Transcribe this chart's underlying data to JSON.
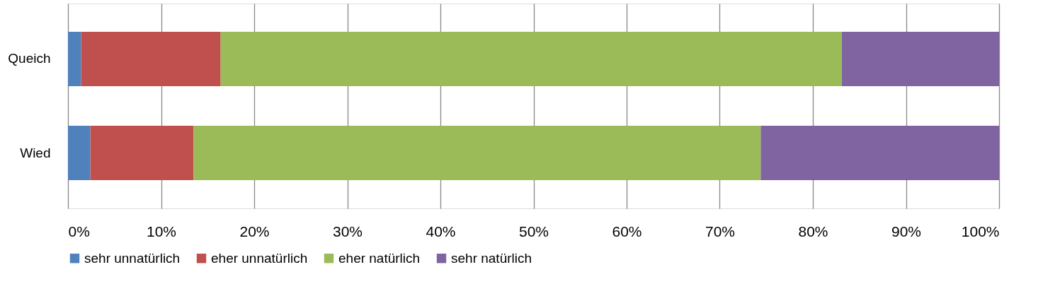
{
  "chart_data": {
    "type": "bar",
    "orientation": "horizontal",
    "stacked": true,
    "categories": [
      "Queich",
      "Wied"
    ],
    "series": [
      {
        "name": "sehr unnatürlich",
        "color": "#4f81bd",
        "values": [
          1.4,
          2.4
        ]
      },
      {
        "name": "eher unnatürlich",
        "color": "#c0504d",
        "values": [
          15.0,
          11.1
        ]
      },
      {
        "name": "eher natürlich",
        "color": "#9bbb59",
        "values": [
          66.7,
          60.9
        ]
      },
      {
        "name": "sehr natürlich",
        "color": "#8064a2",
        "values": [
          16.9,
          25.6
        ]
      }
    ],
    "xlim": [
      0,
      100
    ],
    "xticks": [
      {
        "value": 0,
        "label": "0%"
      },
      {
        "value": 10,
        "label": "10%"
      },
      {
        "value": 20,
        "label": "20%"
      },
      {
        "value": 30,
        "label": "30%"
      },
      {
        "value": 40,
        "label": "40%"
      },
      {
        "value": 50,
        "label": "50%"
      },
      {
        "value": 60,
        "label": "60%"
      },
      {
        "value": 70,
        "label": "70%"
      },
      {
        "value": 80,
        "label": "80%"
      },
      {
        "value": 90,
        "label": "90%"
      },
      {
        "value": 100,
        "label": "100%"
      }
    ],
    "grid": "x",
    "legend": "bottom"
  }
}
